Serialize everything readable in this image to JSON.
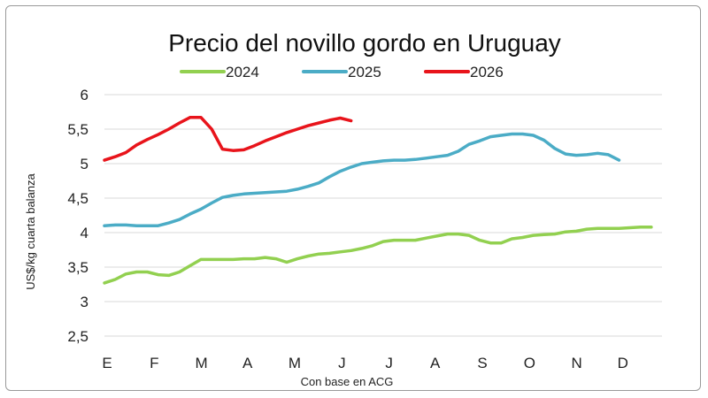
{
  "chart_data": {
    "type": "line",
    "title": "Precio del novillo gordo en Uruguay",
    "ylabel": "US$/kg cuarta balanza",
    "xlabel": "Con base en ACG",
    "ylim": [
      2.5,
      6
    ],
    "yticks": [
      "6",
      "5,5",
      "5",
      "4,5",
      "4",
      "3,5",
      "3",
      "2,5"
    ],
    "yticks_values": [
      6,
      5.5,
      5,
      4.5,
      4,
      3.5,
      3,
      2.5
    ],
    "xlim": [
      0,
      52
    ],
    "month_labels": [
      "E",
      "F",
      "M",
      "A",
      "M",
      "J",
      "J",
      "A",
      "S",
      "O",
      "N",
      "D"
    ],
    "month_positions": [
      0,
      4.4,
      8.8,
      13.1,
      17.5,
      21.9,
      26.3,
      30.6,
      35,
      39.4,
      43.8,
      48.1
    ],
    "grid": true,
    "legend_position": "top",
    "series": [
      {
        "name": "2024",
        "color": "#92d050",
        "x": [
          0,
          1,
          2,
          3,
          4,
          5,
          6,
          7,
          8,
          9,
          10,
          11,
          12,
          13,
          14,
          15,
          16,
          17,
          18,
          19,
          20,
          21,
          22,
          23,
          24,
          25,
          26,
          27,
          28,
          29,
          30,
          31,
          32,
          33,
          34,
          35,
          36,
          37,
          38,
          39,
          40,
          41,
          42,
          43,
          44,
          45,
          46,
          47,
          48,
          49,
          50,
          51
        ],
        "y": [
          3.27,
          3.32,
          3.4,
          3.43,
          3.43,
          3.39,
          3.38,
          3.43,
          3.52,
          3.61,
          3.61,
          3.61,
          3.61,
          3.62,
          3.62,
          3.64,
          3.62,
          3.57,
          3.62,
          3.66,
          3.69,
          3.7,
          3.72,
          3.74,
          3.77,
          3.81,
          3.87,
          3.89,
          3.89,
          3.89,
          3.92,
          3.95,
          3.98,
          3.98,
          3.96,
          3.89,
          3.85,
          3.85,
          3.91,
          3.93,
          3.96,
          3.97,
          3.98,
          4.01,
          4.02,
          4.05,
          4.06,
          4.06,
          4.06,
          4.07,
          4.08,
          4.08
        ]
      },
      {
        "name": "2025",
        "color": "#4bacc6",
        "x": [
          0,
          1,
          2,
          3,
          4,
          5,
          6,
          7,
          8,
          9,
          10,
          11,
          12,
          13,
          14,
          15,
          16,
          17,
          18,
          19,
          20,
          21,
          22,
          23,
          24,
          25,
          26,
          27,
          28,
          29,
          30,
          31,
          32,
          33,
          34,
          35,
          36,
          37,
          38,
          39,
          40,
          41,
          42,
          43,
          44,
          45,
          46,
          47,
          48
        ],
        "y": [
          4.1,
          4.11,
          4.11,
          4.1,
          4.1,
          4.1,
          4.14,
          4.19,
          4.27,
          4.34,
          4.43,
          4.51,
          4.54,
          4.56,
          4.57,
          4.58,
          4.59,
          4.6,
          4.63,
          4.67,
          4.72,
          4.81,
          4.89,
          4.95,
          5.0,
          5.02,
          5.04,
          5.05,
          5.05,
          5.06,
          5.08,
          5.1,
          5.12,
          5.18,
          5.28,
          5.33,
          5.39,
          5.41,
          5.43,
          5.43,
          5.41,
          5.34,
          5.22,
          5.14,
          5.12,
          5.13,
          5.15,
          5.13,
          5.05
        ]
      },
      {
        "name": "2026",
        "color": "#e8141b",
        "x": [
          0,
          1,
          2,
          3,
          4,
          5,
          6,
          7,
          8,
          9,
          10,
          11,
          12,
          13,
          14,
          15,
          16,
          17,
          18,
          19,
          20,
          21,
          22,
          23
        ],
        "y": [
          5.05,
          5.1,
          5.16,
          5.27,
          5.35,
          5.42,
          5.5,
          5.59,
          5.67,
          5.67,
          5.5,
          5.21,
          5.19,
          5.2,
          5.26,
          5.33,
          5.39,
          5.45,
          5.5,
          5.55,
          5.59,
          5.63,
          5.66,
          5.62
        ]
      }
    ]
  }
}
